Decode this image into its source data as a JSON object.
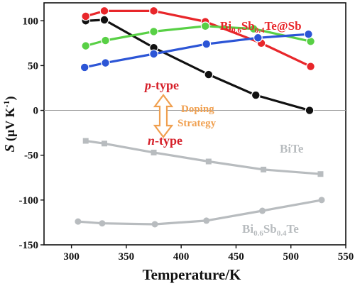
{
  "chart_data": {
    "type": "line",
    "xlabel": "Temperature/K",
    "ylabel": {
      "main": "S",
      "unit_open": " (μV K",
      "unit_exp": "-1",
      "unit_close": ")"
    },
    "xlim": [
      275,
      550
    ],
    "ylim": [
      -150,
      120
    ],
    "xticks": [
      300,
      350,
      400,
      450,
      500,
      550
    ],
    "yticks": [
      -150,
      -100,
      -50,
      0,
      50,
      100
    ],
    "zero_line": true,
    "series": [
      {
        "color": "#111111",
        "marker": "circle",
        "x": [
          313,
          330,
          375,
          425,
          468,
          517
        ],
        "y": [
          100,
          101,
          70,
          40,
          17,
          0
        ]
      },
      {
        "color": "#e8262a",
        "marker": "circle",
        "x": [
          313,
          330,
          375,
          422,
          473,
          518
        ],
        "y": [
          105,
          111,
          111,
          99,
          75,
          49
        ]
      },
      {
        "color": "#58d045",
        "marker": "circle",
        "x": [
          313,
          331,
          375,
          422,
          466,
          518
        ],
        "y": [
          72,
          78,
          88,
          94,
          91,
          77
        ]
      },
      {
        "color": "#2c55d6",
        "marker": "circle",
        "x": [
          312,
          331,
          375,
          423,
          470,
          516
        ],
        "y": [
          48,
          53,
          63,
          74,
          81,
          85
        ]
      },
      {
        "name": "BiTe",
        "color": "#b8bcbf",
        "marker": "square",
        "x": [
          313,
          330,
          375,
          425,
          475,
          527
        ],
        "y": [
          -34,
          -37,
          -47,
          -57,
          -66,
          -71
        ]
      },
      {
        "name": "Bi0.6Sb0.4Te",
        "color": "#b8bcbf",
        "marker": "circle",
        "x": [
          306,
          328,
          376,
          423,
          474,
          528
        ],
        "y": [
          -124,
          -126,
          -127,
          -123,
          -112,
          -100
        ]
      }
    ],
    "legend": {
      "bisbte_sb": {
        "main": "Bi",
        "s1": "0.6",
        "m2": "Sb",
        "s2": "0.4",
        "m3": "Te@Sb",
        "color": "#e8262a"
      },
      "bite": {
        "text": "BiTe",
        "color": "#b8bcbf"
      },
      "bisbte": {
        "main": "Bi",
        "s1": "0.6",
        "m2": "Sb",
        "s2": "0.4",
        "m3": "Te",
        "color": "#b8bcbf"
      }
    },
    "annotations": {
      "p_type": {
        "italic": "p",
        "rest": "-type",
        "color": "#d6202a"
      },
      "n_type": {
        "italic": "n",
        "rest": "-type",
        "color": "#d6202a"
      },
      "doping": {
        "line1": "Doping",
        "line2": "Strategy",
        "color": "#f0a050"
      }
    }
  }
}
